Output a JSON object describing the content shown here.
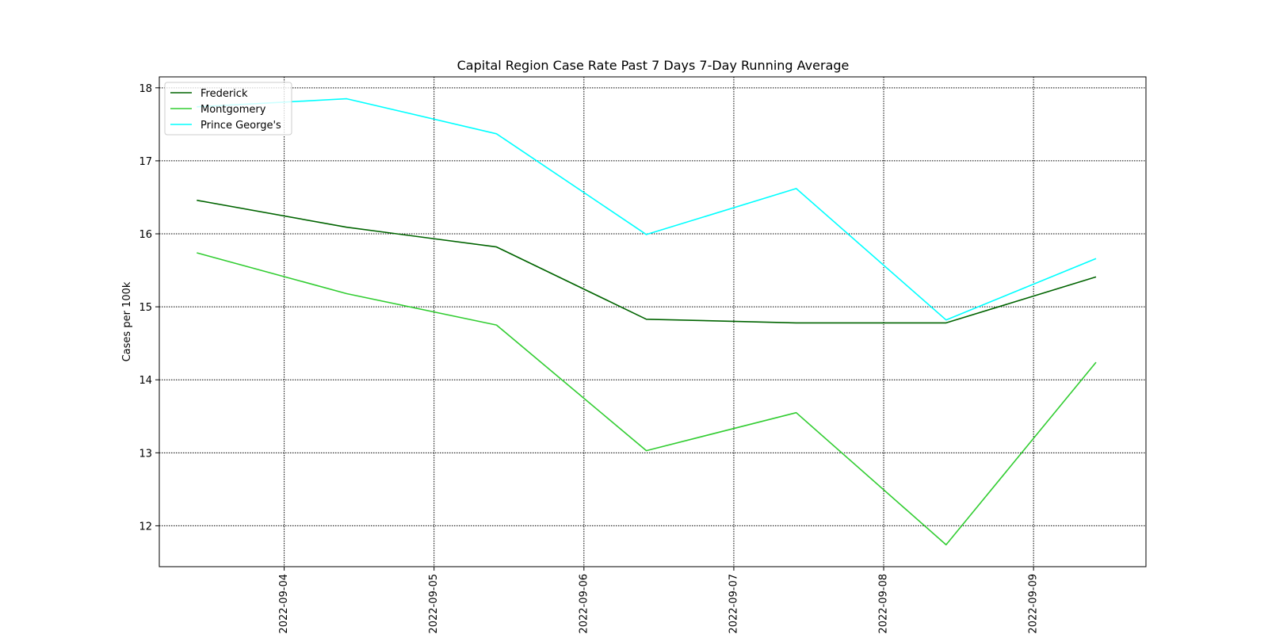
{
  "chart_data": {
    "type": "line",
    "title": "Capital Region Case Rate  Past 7 Days 7-Day Running Average",
    "xlabel": "",
    "ylabel": "Cases per 100k",
    "x": [
      "2022-09-03T10:00",
      "2022-09-04T10:00",
      "2022-09-05T10:00",
      "2022-09-06T10:00",
      "2022-09-07T10:00",
      "2022-09-08T10:00",
      "2022-09-09T10:00"
    ],
    "xlim": [
      "2022-09-03T04:00",
      "2022-09-09T18:00"
    ],
    "xticks": [
      "2022-09-04",
      "2022-09-05",
      "2022-09-06",
      "2022-09-07",
      "2022-09-08",
      "2022-09-09"
    ],
    "ylim": [
      11.44,
      18.15
    ],
    "yticks": [
      12,
      13,
      14,
      15,
      16,
      17,
      18
    ],
    "grid": true,
    "legend_position": "top-left",
    "series": [
      {
        "name": "Frederick",
        "color": "#006400",
        "values": [
          16.46,
          16.09,
          15.82,
          14.83,
          14.78,
          14.78,
          15.41
        ]
      },
      {
        "name": "Montgomery",
        "color": "#32cd32",
        "values": [
          15.74,
          15.18,
          14.75,
          13.03,
          13.55,
          11.74,
          14.24
        ]
      },
      {
        "name": "Prince George's",
        "color": "#00ffff",
        "values": [
          17.74,
          17.85,
          17.37,
          15.99,
          16.62,
          14.82,
          15.66
        ]
      }
    ]
  }
}
